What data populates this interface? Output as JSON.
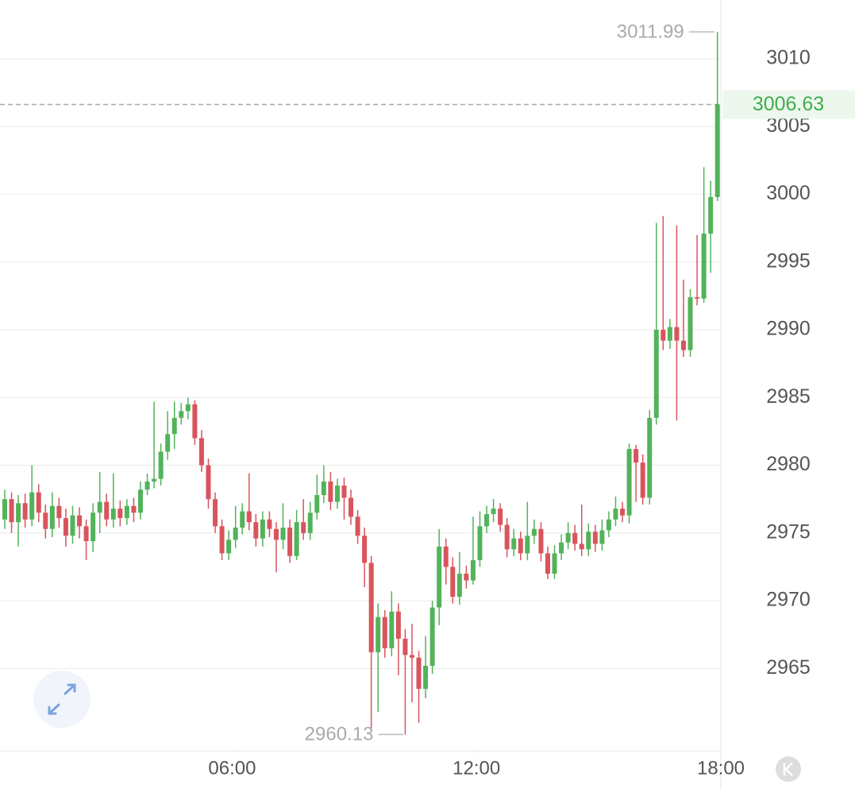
{
  "chart_data": {
    "type": "candlestick",
    "x": [
      "00:25",
      "00:35",
      "00:45",
      "00:55",
      "01:05",
      "01:15",
      "01:25",
      "01:35",
      "01:45",
      "01:55",
      "02:05",
      "02:15",
      "02:25",
      "02:35",
      "02:45",
      "02:55",
      "03:05",
      "03:15",
      "03:25",
      "03:35",
      "03:45",
      "03:55",
      "04:05",
      "04:15",
      "04:25",
      "04:35",
      "04:45",
      "04:55",
      "05:05",
      "05:15",
      "05:25",
      "05:35",
      "05:45",
      "05:55",
      "06:05",
      "06:15",
      "06:25",
      "06:35",
      "06:45",
      "06:55",
      "07:05",
      "07:15",
      "07:25",
      "07:35",
      "07:45",
      "07:55",
      "08:05",
      "08:15",
      "08:25",
      "08:35",
      "08:45",
      "08:55",
      "09:05",
      "09:15",
      "09:25",
      "09:35",
      "09:45",
      "09:55",
      "10:05",
      "10:15",
      "10:25",
      "10:35",
      "10:45",
      "10:55",
      "11:05",
      "11:15",
      "11:25",
      "11:35",
      "11:45",
      "11:55",
      "12:05",
      "12:15",
      "12:25",
      "12:35",
      "12:45",
      "12:55",
      "13:05",
      "13:15",
      "13:25",
      "13:35",
      "13:45",
      "13:55",
      "14:05",
      "14:15",
      "14:25",
      "14:35",
      "14:45",
      "14:55",
      "15:05",
      "15:15",
      "15:25",
      "15:35",
      "15:45",
      "15:55",
      "16:05",
      "16:15",
      "16:25",
      "16:35",
      "16:45",
      "16:55",
      "17:05",
      "17:15",
      "17:25",
      "17:35",
      "17:45",
      "17:55"
    ],
    "open": [
      2976.0,
      2977.5,
      2975.8,
      2977.2,
      2976.0,
      2978.0,
      2976.5,
      2975.3,
      2977.0,
      2976.1,
      2974.8,
      2976.3,
      2975.5,
      2974.4,
      2976.5,
      2977.3,
      2976.0,
      2976.8,
      2976.1,
      2977.0,
      2976.5,
      2978.2,
      2978.8,
      2979.0,
      2981.0,
      2982.3,
      2983.5,
      2984.0,
      2984.5,
      2982.0,
      2980.0,
      2977.5,
      2975.5,
      2973.5,
      2974.5,
      2975.4,
      2976.6,
      2975.8,
      2974.6,
      2976.0,
      2975.3,
      2974.5,
      2975.4,
      2973.3,
      2975.8,
      2975.0,
      2976.5,
      2977.8,
      2978.8,
      2977.3,
      2978.5,
      2977.6,
      2976.2,
      2974.8,
      2972.8,
      2966.2,
      2968.8,
      2966.5,
      2969.2,
      2967.2,
      2966.0,
      2965.8,
      2963.5,
      2965.2,
      2969.5,
      2974.0,
      2972.5,
      2970.3,
      2972.0,
      2971.5,
      2973.0,
      2975.5,
      2976.4,
      2976.8,
      2975.6,
      2973.8,
      2974.6,
      2973.5,
      2974.8,
      2975.3,
      2973.5,
      2972.0,
      2973.5,
      2974.3,
      2975.0,
      2974.2,
      2973.8,
      2975.1,
      2974.2,
      2975.2,
      2976.0,
      2976.8,
      2976.3,
      2981.2,
      2980.2,
      2977.6,
      2983.5,
      2990.0,
      2989.2,
      2990.2,
      2989.2,
      2988.5,
      2992.4,
      2992.3,
      2997.1,
      2999.8
    ],
    "high": [
      2978.2,
      2978.0,
      2977.8,
      2977.9,
      2980.0,
      2978.6,
      2977.1,
      2978.0,
      2977.6,
      2976.8,
      2977.0,
      2976.9,
      2976.0,
      2977.2,
      2979.5,
      2977.9,
      2979.4,
      2977.4,
      2977.5,
      2977.6,
      2978.8,
      2979.4,
      2984.7,
      2981.6,
      2984.0,
      2984.7,
      2984.6,
      2985.0,
      2984.8,
      2982.6,
      2980.5,
      2978.0,
      2976.0,
      2975.2,
      2977.0,
      2977.2,
      2979.4,
      2976.4,
      2976.6,
      2976.6,
      2975.8,
      2977.2,
      2976.0,
      2976.7,
      2977.5,
      2977.3,
      2979.3,
      2980.0,
      2979.5,
      2979.0,
      2979.1,
      2978.2,
      2976.7,
      2975.4,
      2973.3,
      2969.8,
      2969.3,
      2970.7,
      2969.8,
      2967.9,
      2968.3,
      2966.3,
      2967.4,
      2970.0,
      2975.3,
      2974.6,
      2973.2,
      2973.6,
      2972.6,
      2976.2,
      2976.6,
      2977.0,
      2977.5,
      2977.2,
      2976.1,
      2975.3,
      2975.1,
      2977.3,
      2976.0,
      2975.8,
      2974.0,
      2974.1,
      2974.9,
      2975.8,
      2975.6,
      2977.1,
      2975.7,
      2975.6,
      2976.0,
      2976.6,
      2977.7,
      2977.3,
      2981.6,
      2981.5,
      2980.8,
      2984.1,
      2997.9,
      2998.4,
      2990.8,
      2997.7,
      2993.7,
      2993.0,
      2997.0,
      3002.0,
      3001.0,
      3011.99
    ],
    "low": [
      2975.3,
      2975.0,
      2974.0,
      2975.4,
      2975.5,
      2975.8,
      2974.6,
      2974.7,
      2975.4,
      2974.0,
      2974.2,
      2974.6,
      2973.0,
      2973.6,
      2975.0,
      2975.5,
      2975.4,
      2975.5,
      2975.6,
      2975.8,
      2976.0,
      2977.8,
      2978.3,
      2978.5,
      2980.4,
      2981.2,
      2983.0,
      2983.4,
      2981.5,
      2979.5,
      2976.8,
      2975.0,
      2973.0,
      2973.0,
      2973.9,
      2974.9,
      2975.2,
      2974.0,
      2974.0,
      2974.7,
      2972.1,
      2973.8,
      2972.8,
      2973.0,
      2974.5,
      2974.5,
      2976.0,
      2977.2,
      2976.7,
      2976.8,
      2976.0,
      2975.6,
      2974.2,
      2971.0,
      2960.6,
      2961.8,
      2965.8,
      2965.9,
      2964.5,
      2960.13,
      2962.5,
      2961.0,
      2962.8,
      2964.6,
      2968.2,
      2971.2,
      2969.8,
      2969.7,
      2970.9,
      2971.2,
      2972.5,
      2975.0,
      2975.8,
      2975.1,
      2973.2,
      2973.3,
      2973.0,
      2973.0,
      2974.2,
      2972.9,
      2971.6,
      2971.6,
      2973.0,
      2973.8,
      2973.7,
      2973.3,
      2973.3,
      2973.6,
      2973.7,
      2974.7,
      2975.5,
      2975.8,
      2975.7,
      2977.3,
      2977.1,
      2977.1,
      2983.0,
      2988.5,
      2988.6,
      2983.3,
      2988.0,
      2988.0,
      2991.8,
      2992.0,
      2994.2,
      2999.5
    ],
    "close": [
      2977.5,
      2975.8,
      2977.2,
      2976.0,
      2978.0,
      2976.5,
      2975.3,
      2977.0,
      2976.1,
      2974.8,
      2976.3,
      2975.5,
      2974.4,
      2976.5,
      2977.3,
      2976.0,
      2976.8,
      2976.1,
      2977.0,
      2976.5,
      2978.2,
      2978.8,
      2979.0,
      2981.0,
      2982.3,
      2983.5,
      2984.0,
      2984.5,
      2982.0,
      2980.0,
      2977.5,
      2975.5,
      2973.5,
      2974.5,
      2975.4,
      2976.6,
      2975.8,
      2974.6,
      2976.0,
      2975.3,
      2974.5,
      2975.4,
      2973.3,
      2975.8,
      2975.0,
      2976.5,
      2977.8,
      2978.8,
      2977.3,
      2978.5,
      2977.6,
      2976.2,
      2974.8,
      2972.8,
      2966.2,
      2968.8,
      2966.5,
      2969.2,
      2967.2,
      2966.0,
      2965.8,
      2963.5,
      2965.2,
      2969.5,
      2974.0,
      2972.5,
      2970.3,
      2972.0,
      2971.5,
      2973.0,
      2975.5,
      2976.4,
      2976.8,
      2975.6,
      2973.8,
      2974.6,
      2973.5,
      2974.8,
      2975.3,
      2973.5,
      2972.0,
      2973.5,
      2974.3,
      2975.0,
      2974.2,
      2973.8,
      2975.1,
      2974.2,
      2975.2,
      2976.0,
      2976.8,
      2976.3,
      2981.2,
      2980.2,
      2977.6,
      2983.5,
      2990.0,
      2989.2,
      2990.2,
      2989.2,
      2988.5,
      2992.4,
      2992.3,
      2997.1,
      2999.8,
      3006.63
    ],
    "up_color": "#52b35a",
    "down_color": "#d9545c",
    "xlim": [
      "00:18",
      "18:00"
    ],
    "xticks": [
      "06:00",
      "12:00",
      "18:00"
    ],
    "ylim": [
      2958.92,
      3014.34
    ],
    "yticks": [
      2965,
      2970,
      2975,
      2980,
      2985,
      2990,
      2995,
      3000,
      3005,
      3010
    ],
    "grid": true,
    "high_label": 3011.99,
    "low_label": 2960.13,
    "last_price": 3006.63
  }
}
